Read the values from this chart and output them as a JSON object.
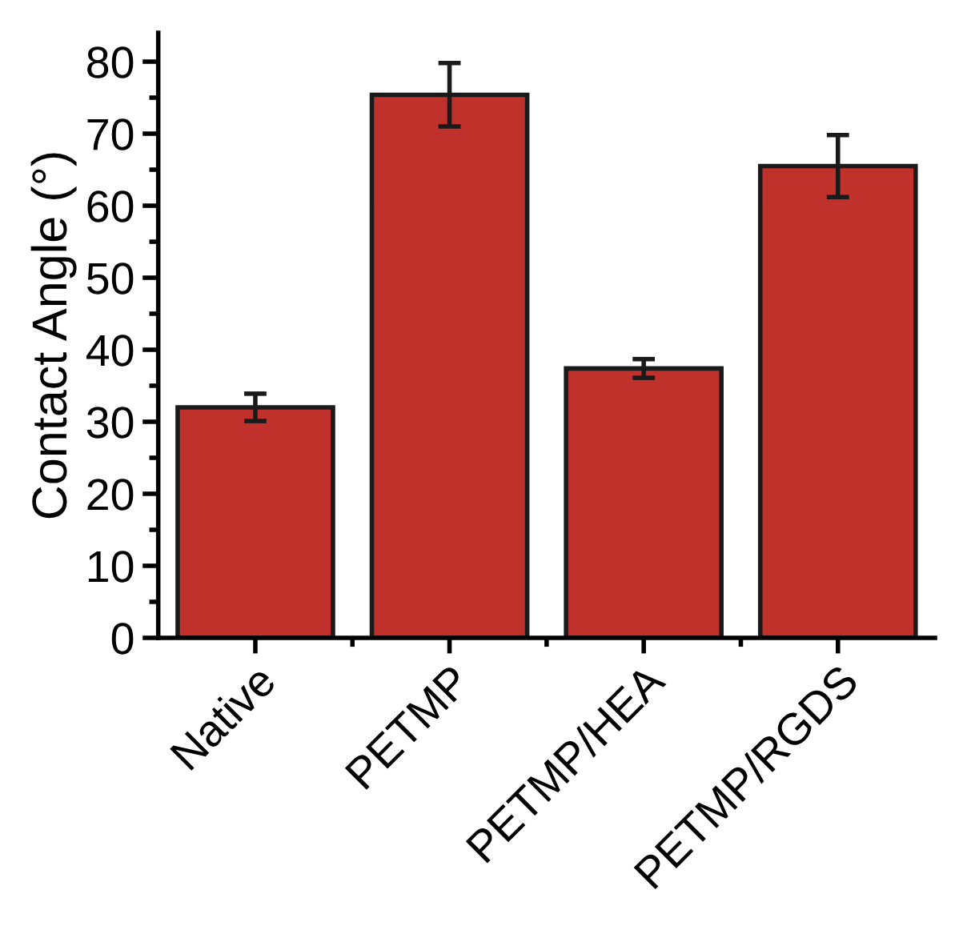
{
  "chart_data": {
    "type": "bar",
    "ylabel": "Contact Angle (°)",
    "categories": [
      "Native",
      "PETMP",
      "PETMP/HEA",
      "PETMP/RGDS"
    ],
    "values": [
      32.0,
      75.4,
      37.4,
      65.5
    ],
    "errors": [
      1.9,
      4.4,
      1.3,
      4.3
    ],
    "color": "#c0312b",
    "ylim": [
      0,
      84
    ],
    "yticks": [
      0,
      10,
      20,
      30,
      40,
      50,
      60,
      70,
      80
    ],
    "grid": false,
    "legend": false
  }
}
